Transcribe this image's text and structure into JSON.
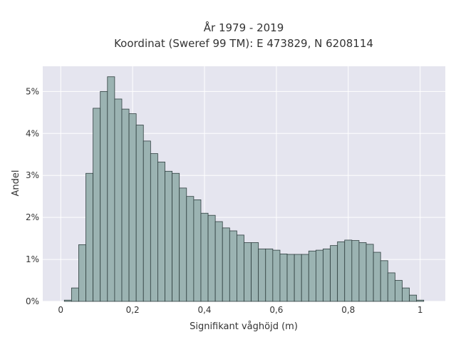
{
  "chart_data": {
    "type": "bar",
    "title_lines": [
      "År 1979 - 2019",
      "Koordinat (Sweref 99 TM): E 473829, N 6208114"
    ],
    "xlabel": "Signifikant våghöjd (m)",
    "ylabel": "Andel",
    "xlim": [
      -0.05,
      1.07
    ],
    "ylim": [
      0,
      5.6
    ],
    "x_ticks": [
      {
        "value": 0,
        "label": "0"
      },
      {
        "value": 0.2,
        "label": "0,2"
      },
      {
        "value": 0.4,
        "label": "0,4"
      },
      {
        "value": 0.6,
        "label": "0,6"
      },
      {
        "value": 0.8,
        "label": "0,8"
      },
      {
        "value": 1,
        "label": "1"
      }
    ],
    "y_ticks": [
      {
        "value": 0,
        "label": "0%"
      },
      {
        "value": 1,
        "label": "1%"
      },
      {
        "value": 2,
        "label": "2%"
      },
      {
        "value": 3,
        "label": "3%"
      },
      {
        "value": 4,
        "label": "4%"
      },
      {
        "value": 5,
        "label": "5%"
      }
    ],
    "grid": true,
    "bar_color": "#9bb3b2",
    "bar_edge_color": "#2f3f3f",
    "plot_bg": "#e5e5ef",
    "bin_start": 0.01,
    "bin_width": 0.02,
    "values": [
      0.03,
      0.32,
      1.35,
      3.05,
      4.6,
      5.0,
      5.35,
      4.82,
      4.58,
      4.47,
      4.2,
      3.82,
      3.52,
      3.32,
      3.1,
      3.05,
      2.7,
      2.5,
      2.42,
      2.1,
      2.05,
      1.9,
      1.75,
      1.68,
      1.58,
      1.4,
      1.4,
      1.25,
      1.25,
      1.22,
      1.13,
      1.12,
      1.12,
      1.12,
      1.2,
      1.22,
      1.25,
      1.33,
      1.42,
      1.46,
      1.45,
      1.4,
      1.36,
      1.17,
      0.97,
      0.68,
      0.5,
      0.32,
      0.15,
      0.03
    ]
  }
}
